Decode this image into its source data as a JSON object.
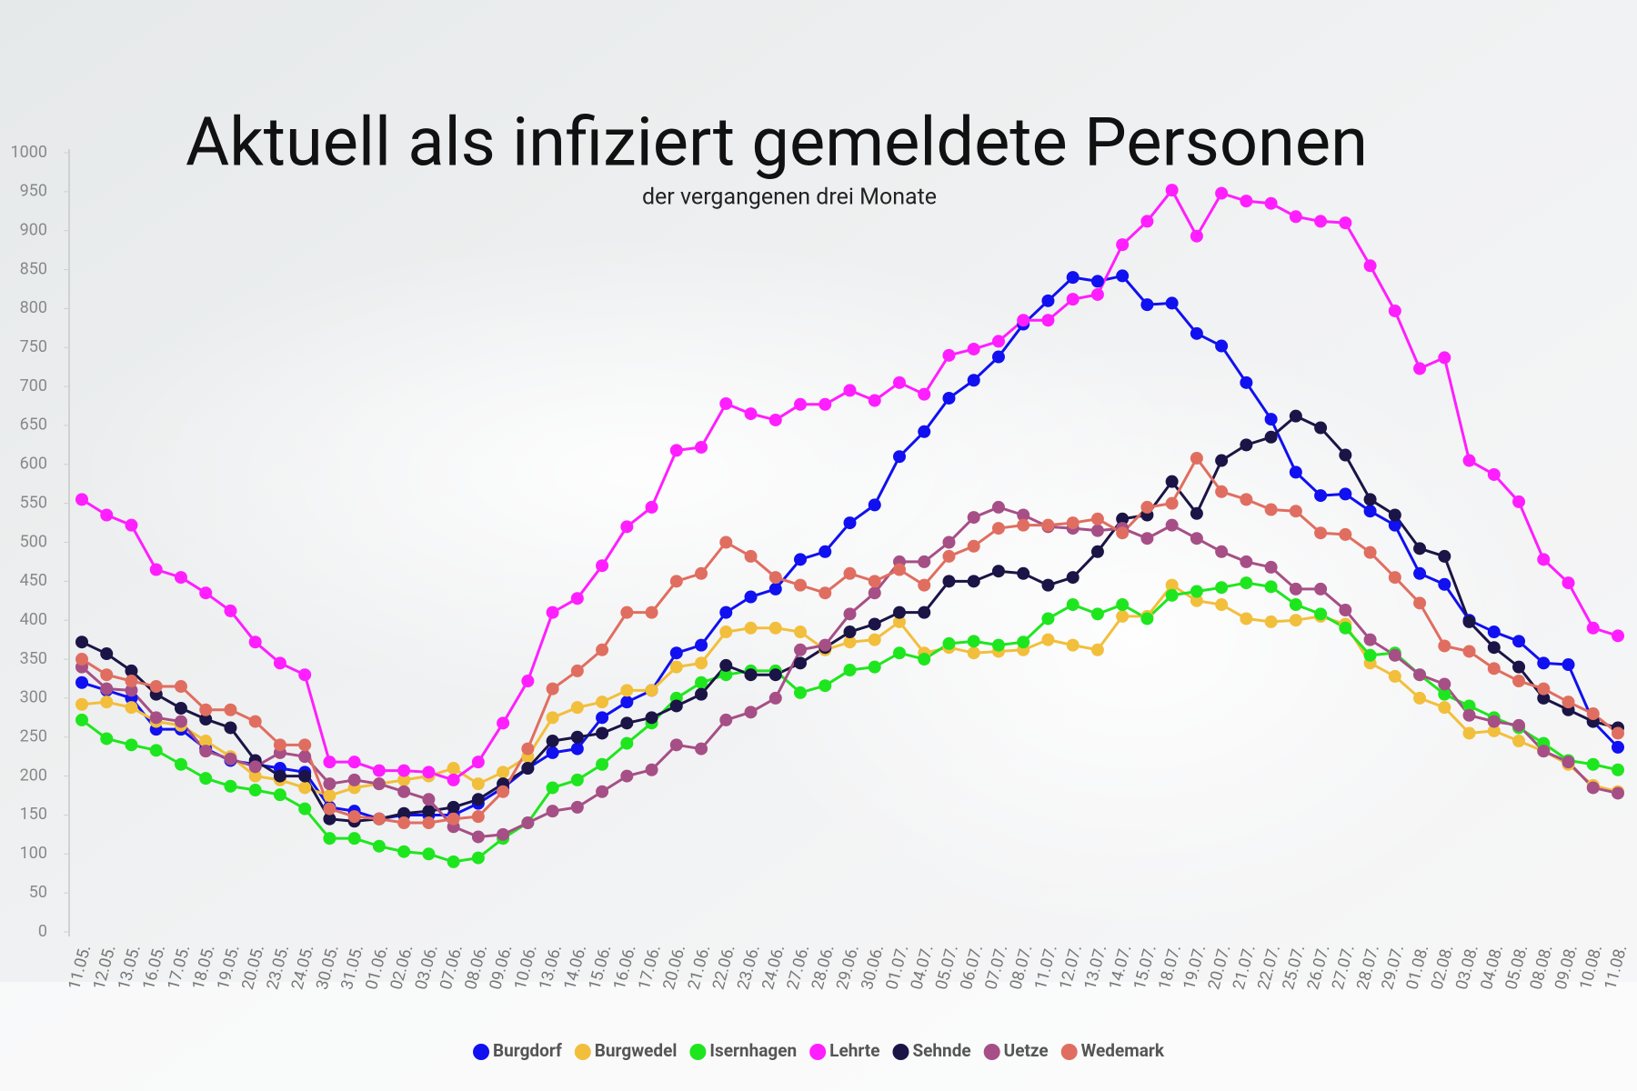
{
  "chart_data": {
    "type": "line",
    "title": "Aktuell als infiziert gemeldete Personen",
    "subtitle": "der vergangenen drei Monate",
    "categories": [
      "11.05.",
      "12.05.",
      "13.05.",
      "16.05.",
      "17.05.",
      "18.05.",
      "19.05.",
      "20.05.",
      "23.05.",
      "24.05.",
      "30.05.",
      "31.05.",
      "01.06.",
      "02.06.",
      "03.06.",
      "07.06.",
      "08.06.",
      "09.06.",
      "10.06.",
      "13.06.",
      "14.06.",
      "15.06.",
      "16.06.",
      "17.06.",
      "20.06.",
      "21.06.",
      "22.06.",
      "23.06.",
      "24.06.",
      "27.06.",
      "28.06.",
      "29.06.",
      "30.06.",
      "01.07.",
      "04.07.",
      "05.07.",
      "06.07.",
      "07.07.",
      "08.07.",
      "11.07.",
      "12.07.",
      "13.07.",
      "14.07.",
      "15.07.",
      "18.07.",
      "19.07.",
      "20.07.",
      "21.07.",
      "22.07.",
      "25.07.",
      "26.07.",
      "27.07.",
      "28.07.",
      "29.07.",
      "01.08.",
      "02.08.",
      "03.08.",
      "04.08.",
      "05.08.",
      "08.08.",
      "09.08.",
      "10.08.",
      "11.08."
    ],
    "series": [
      {
        "name": "Burgdorf",
        "color": "#1010f0",
        "values": [
          320,
          310,
          300,
          260,
          260,
          235,
          220,
          215,
          210,
          205,
          160,
          155,
          145,
          150,
          150,
          150,
          165,
          185,
          210,
          230,
          235,
          275,
          295,
          310,
          358,
          368,
          410,
          430,
          440,
          478,
          488,
          525,
          548,
          610,
          642,
          685,
          708,
          738,
          780,
          810,
          840,
          835,
          842,
          805,
          807,
          768,
          752,
          705,
          658,
          590,
          560,
          562,
          540,
          522,
          460,
          446,
          400,
          385,
          373,
          345,
          343,
          270,
          237
        ]
      },
      {
        "name": "Burgwedel",
        "color": "#f2bf3c",
        "values": [
          292,
          295,
          288,
          270,
          265,
          245,
          225,
          200,
          195,
          185,
          175,
          185,
          190,
          195,
          200,
          210,
          190,
          205,
          225,
          275,
          288,
          295,
          310,
          310,
          340,
          345,
          385,
          390,
          390,
          385,
          362,
          372,
          375,
          398,
          358,
          365,
          358,
          360,
          362,
          375,
          368,
          362,
          405,
          405,
          445,
          425,
          420,
          402,
          398,
          400,
          405,
          395,
          345,
          328,
          300,
          288,
          255,
          258,
          245,
          232,
          215,
          188,
          180
        ]
      },
      {
        "name": "Isernhagen",
        "color": "#1ee61e",
        "values": [
          272,
          248,
          240,
          233,
          215,
          197,
          187,
          182,
          176,
          158,
          120,
          120,
          110,
          103,
          100,
          90,
          95,
          120,
          140,
          185,
          195,
          215,
          242,
          268,
          300,
          320,
          330,
          335,
          335,
          307,
          316,
          336,
          340,
          358,
          350,
          370,
          373,
          368,
          372,
          402,
          420,
          408,
          420,
          402,
          432,
          437,
          442,
          448,
          443,
          420,
          408,
          390,
          355,
          358,
          330,
          305,
          290,
          275,
          262,
          242,
          220,
          215,
          208
        ]
      },
      {
        "name": "Lehrte",
        "color": "#ff1eff",
        "values": [
          555,
          535,
          522,
          465,
          455,
          435,
          412,
          372,
          345,
          330,
          218,
          218,
          207,
          207,
          205,
          195,
          218,
          268,
          322,
          410,
          428,
          470,
          520,
          545,
          618,
          622,
          678,
          665,
          657,
          677,
          677,
          695,
          682,
          705,
          690,
          740,
          748,
          758,
          785,
          785,
          812,
          818,
          882,
          912,
          952,
          893,
          948,
          938,
          935,
          918,
          912,
          910,
          855,
          797,
          723,
          737,
          605,
          587,
          552,
          478,
          448,
          390,
          380
        ]
      },
      {
        "name": "Sehnde",
        "color": "#1b1446",
        "values": [
          372,
          357,
          335,
          305,
          287,
          273,
          262,
          220,
          200,
          200,
          145,
          142,
          145,
          152,
          155,
          160,
          170,
          190,
          210,
          245,
          250,
          255,
          268,
          275,
          290,
          305,
          342,
          330,
          330,
          345,
          365,
          385,
          395,
          410,
          410,
          450,
          450,
          463,
          460,
          445,
          455,
          488,
          530,
          535,
          578,
          537,
          605,
          625,
          635,
          662,
          647,
          612,
          555,
          535,
          492,
          482,
          398,
          365,
          340,
          300,
          285,
          270,
          262
        ]
      },
      {
        "name": "Uetze",
        "color": "#a64f86",
        "values": [
          340,
          312,
          310,
          275,
          270,
          232,
          222,
          212,
          230,
          225,
          190,
          195,
          190,
          180,
          170,
          135,
          122,
          125,
          140,
          155,
          160,
          180,
          200,
          208,
          240,
          235,
          272,
          282,
          300,
          362,
          368,
          408,
          435,
          475,
          475,
          500,
          532,
          545,
          535,
          520,
          518,
          515,
          518,
          505,
          522,
          505,
          488,
          475,
          468,
          440,
          440,
          413,
          375,
          355,
          330,
          318,
          278,
          270,
          265,
          232,
          218,
          185,
          178
        ]
      },
      {
        "name": "Wedemark",
        "color": "#e06e60",
        "values": [
          350,
          330,
          322,
          315,
          315,
          285,
          285,
          270,
          240,
          240,
          158,
          148,
          145,
          140,
          140,
          145,
          148,
          180,
          235,
          312,
          335,
          362,
          410,
          410,
          450,
          460,
          500,
          482,
          455,
          445,
          435,
          460,
          450,
          465,
          445,
          482,
          495,
          518,
          522,
          522,
          525,
          530,
          512,
          545,
          550,
          608,
          565,
          555,
          542,
          540,
          512,
          510,
          487,
          455,
          422,
          367,
          360,
          338,
          322,
          312,
          295,
          280,
          255
        ]
      }
    ],
    "ylim": [
      0,
      1000
    ],
    "yticks": [
      0,
      50,
      100,
      150,
      200,
      250,
      300,
      350,
      400,
      450,
      500,
      550,
      600,
      650,
      700,
      750,
      800,
      850,
      900,
      950,
      1000
    ],
    "grid": false,
    "legend": "bottom"
  }
}
